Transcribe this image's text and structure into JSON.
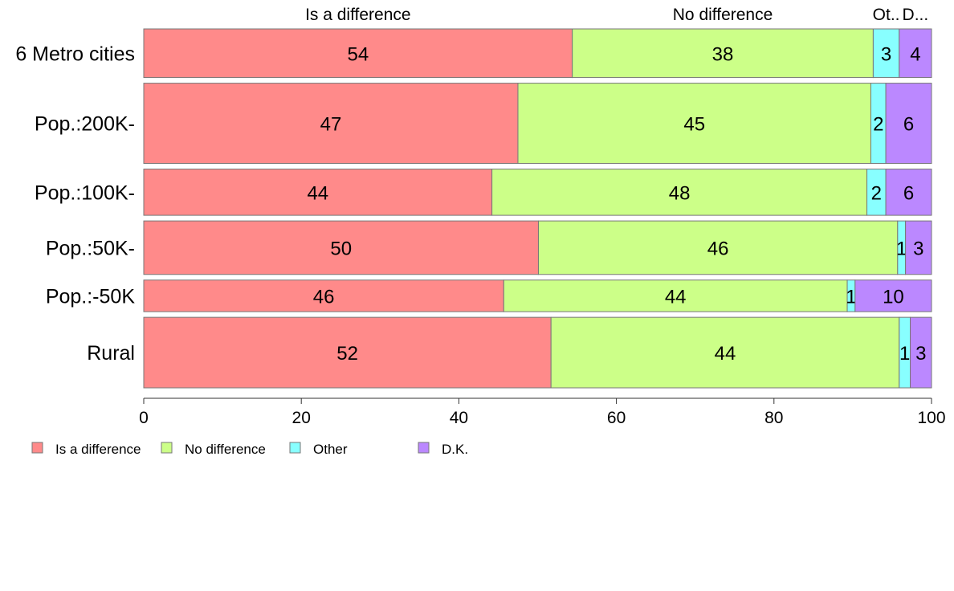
{
  "chart_data": {
    "type": "bar",
    "orientation": "horizontal",
    "stacked": true,
    "title": "",
    "xlabel": "",
    "ylabel": "",
    "xlim": [
      0,
      100
    ],
    "x_ticks": [
      "0",
      "20",
      "40",
      "60",
      "80",
      "100"
    ],
    "categories": [
      "6 Metro cities",
      "Pop.:200K-",
      "Pop.:100K-",
      "Pop.:50K-",
      "Pop.:-50K",
      "Rural"
    ],
    "category_weights": [
      1.0,
      1.65,
      0.95,
      1.1,
      0.65,
      1.45
    ],
    "series": [
      {
        "name": "Is a difference",
        "color": "#ff8a8a",
        "values": [
          54.4,
          47.5,
          44.2,
          50.1,
          45.7,
          51.7
        ]
      },
      {
        "name": "No difference",
        "color": "#ccff88",
        "values": [
          38.2,
          44.8,
          47.6,
          45.6,
          43.6,
          44.2
        ]
      },
      {
        "name": "Other",
        "color": "#88ffff",
        "values": [
          3.3,
          1.9,
          2.4,
          1.0,
          1.0,
          1.4
        ]
      },
      {
        "name": "D.K.",
        "color": "#bb88ff",
        "values": [
          4.1,
          5.8,
          5.8,
          3.3,
          9.7,
          2.7
        ]
      }
    ],
    "data_labels": [
      [
        "54",
        "38",
        "3",
        "4"
      ],
      [
        "47",
        "45",
        "2",
        "6"
      ],
      [
        "44",
        "48",
        "2",
        "6"
      ],
      [
        "50",
        "46",
        "1",
        "3"
      ],
      [
        "46",
        "44",
        "1",
        "10"
      ],
      [
        "52",
        "44",
        "1",
        "3"
      ]
    ],
    "top_labels": [
      "Is a difference",
      "No difference",
      "Ot..",
      "D..."
    ],
    "legend_position": "bottom-left",
    "grid": false
  }
}
